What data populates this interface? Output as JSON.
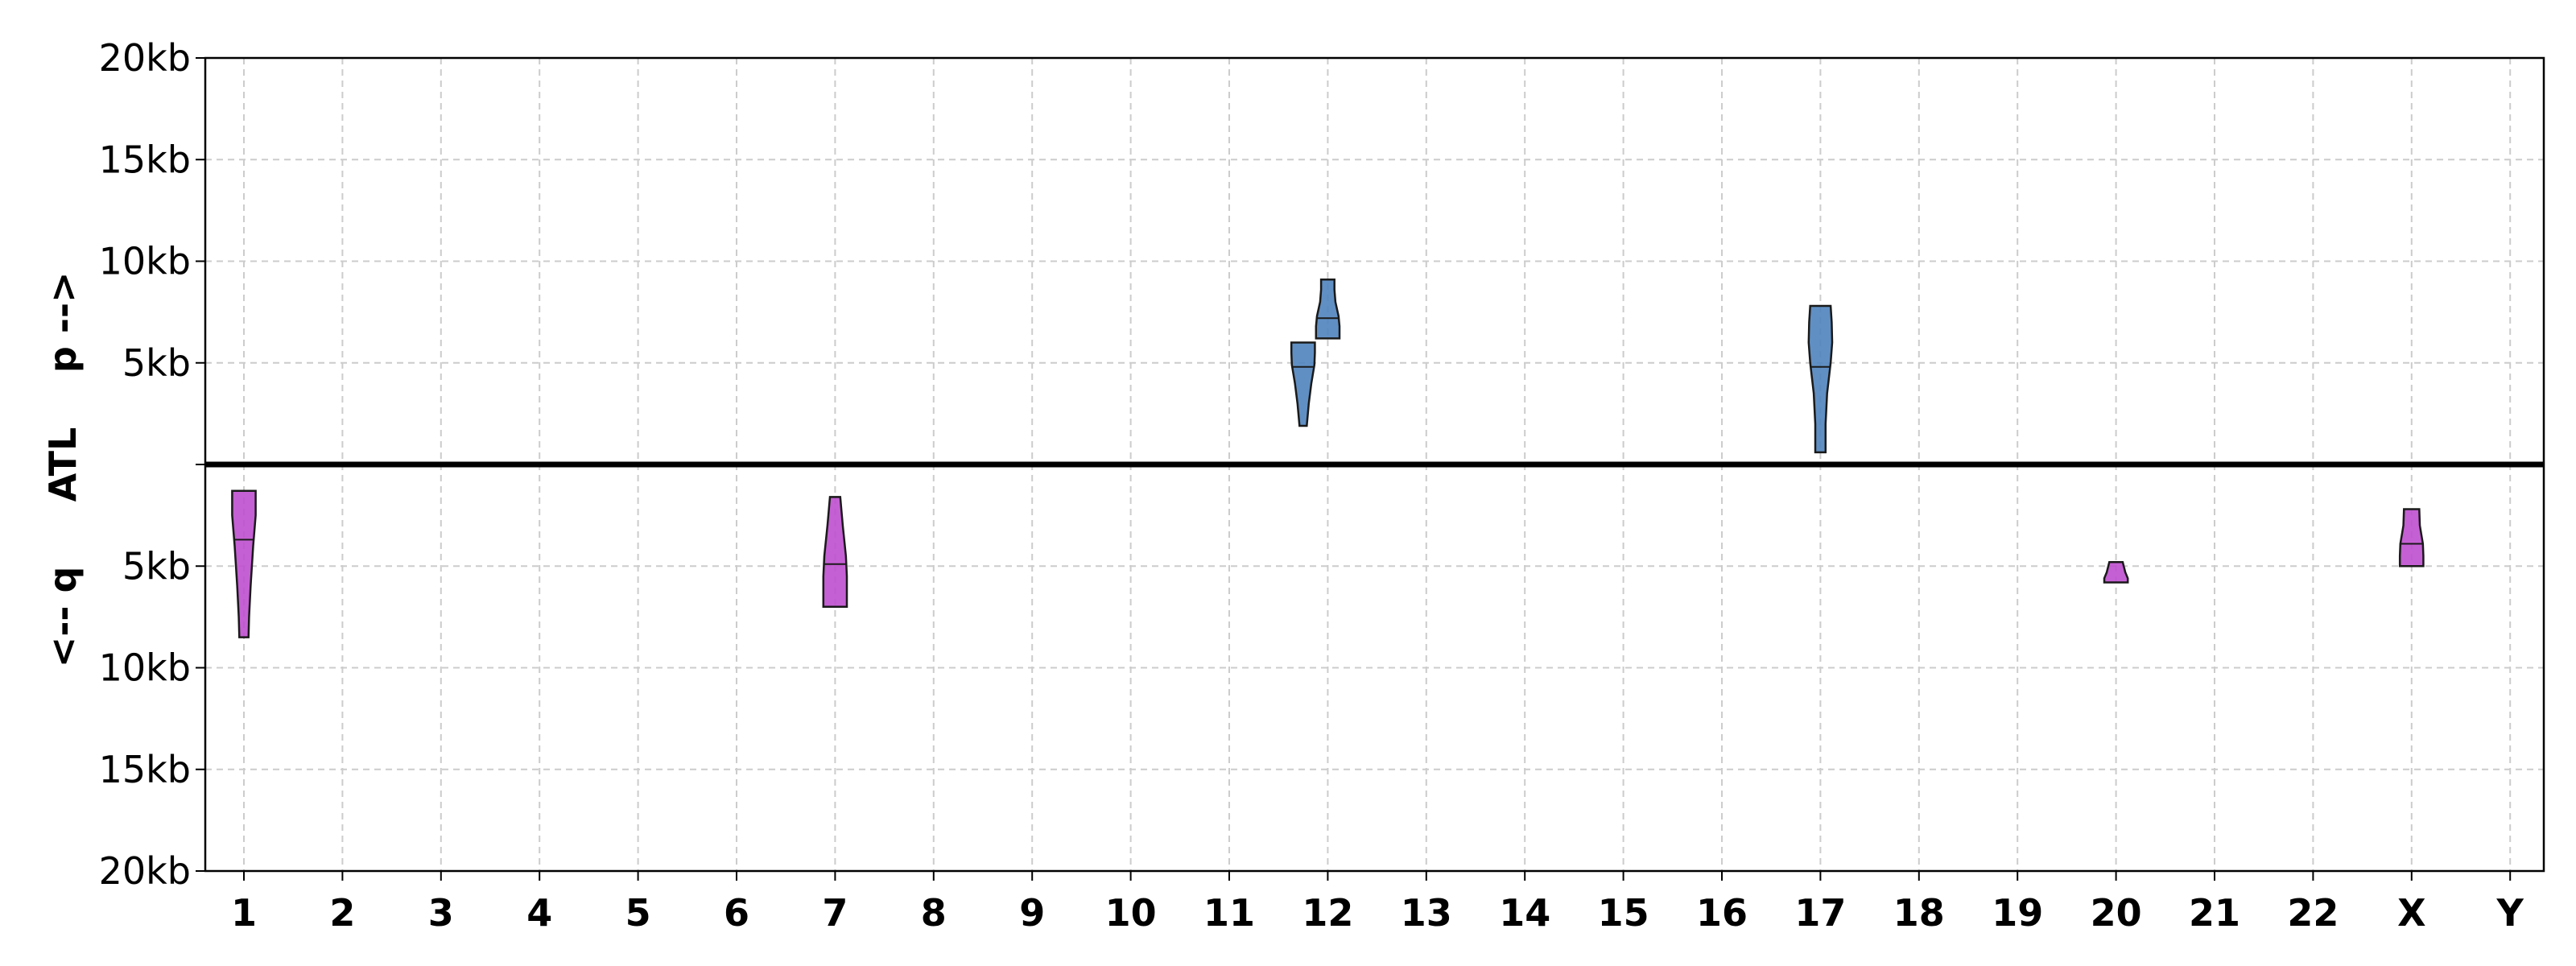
{
  "chart_data": {
    "type": "violin",
    "title": "",
    "side_labels": {
      "upper": "p -->",
      "center": "ATL",
      "lower": "<-- q"
    },
    "categories": [
      "1",
      "2",
      "3",
      "4",
      "5",
      "6",
      "7",
      "8",
      "9",
      "10",
      "11",
      "12",
      "13",
      "14",
      "15",
      "16",
      "17",
      "18",
      "19",
      "20",
      "21",
      "22",
      "X",
      "Y"
    ],
    "y_axis": {
      "unit": "kb",
      "upper_range": [
        0,
        20
      ],
      "lower_range": [
        0,
        20
      ],
      "upper_tick_values": [
        20,
        15,
        10,
        5
      ],
      "upper_tick_labels": [
        "20kb",
        "15kb",
        "10kb",
        "5kb"
      ],
      "lower_tick_values": [
        5,
        10,
        15,
        20
      ],
      "lower_tick_labels": [
        "5kb",
        "10kb",
        "15kb",
        "20kb"
      ]
    },
    "grid": true,
    "colors": {
      "p_arm": "#4f83bd",
      "q_arm": "#bf4fcf",
      "edge": "#1a1a1a",
      "grid": "#cccccc",
      "atl": "#000000"
    },
    "violins": [
      {
        "category": "1",
        "arm": "q",
        "min": 1.3,
        "max": 8.5,
        "median": 3.7,
        "shape": [
          [
            1.3,
            0.46
          ],
          [
            2.5,
            0.46
          ],
          [
            4.0,
            0.36
          ],
          [
            6.0,
            0.26
          ],
          [
            7.5,
            0.2
          ],
          [
            8.5,
            0.18
          ]
        ]
      },
      {
        "category": "7",
        "arm": "q",
        "min": 1.6,
        "max": 7.0,
        "median": 4.9,
        "shape": [
          [
            1.6,
            0.2
          ],
          [
            3.0,
            0.3
          ],
          [
            4.5,
            0.42
          ],
          [
            5.5,
            0.46
          ],
          [
            6.5,
            0.46
          ],
          [
            7.0,
            0.46
          ]
        ]
      },
      {
        "category": "12",
        "arm": "p",
        "x_offset": -0.25,
        "min": 1.9,
        "max": 6.0,
        "median": 4.8,
        "shape": [
          [
            1.9,
            0.14
          ],
          [
            3.0,
            0.22
          ],
          [
            4.0,
            0.32
          ],
          [
            4.9,
            0.44
          ],
          [
            5.5,
            0.46
          ],
          [
            6.0,
            0.46
          ]
        ]
      },
      {
        "category": "12",
        "arm": "p",
        "x_offset": 0.0,
        "min": 6.2,
        "max": 9.1,
        "median": 7.2,
        "shape": [
          [
            6.2,
            0.46
          ],
          [
            6.8,
            0.46
          ],
          [
            7.3,
            0.42
          ],
          [
            8.0,
            0.3
          ],
          [
            8.6,
            0.26
          ],
          [
            9.1,
            0.26
          ]
        ]
      },
      {
        "category": "17",
        "arm": "p",
        "min": 0.6,
        "max": 7.8,
        "median": 4.8,
        "shape": [
          [
            0.6,
            0.2
          ],
          [
            2.0,
            0.2
          ],
          [
            3.5,
            0.26
          ],
          [
            5.0,
            0.4
          ],
          [
            6.0,
            0.46
          ],
          [
            7.0,
            0.44
          ],
          [
            7.8,
            0.4
          ]
        ]
      },
      {
        "category": "20",
        "arm": "q",
        "min": 4.8,
        "max": 5.8,
        "median": 5.8,
        "shape": [
          [
            4.8,
            0.26
          ],
          [
            5.3,
            0.36
          ],
          [
            5.6,
            0.46
          ],
          [
            5.8,
            0.46
          ]
        ]
      },
      {
        "category": "X",
        "arm": "q",
        "min": 2.2,
        "max": 5.0,
        "median": 3.9,
        "shape": [
          [
            2.2,
            0.3
          ],
          [
            3.0,
            0.32
          ],
          [
            3.9,
            0.44
          ],
          [
            4.5,
            0.46
          ],
          [
            5.0,
            0.46
          ]
        ]
      }
    ]
  }
}
